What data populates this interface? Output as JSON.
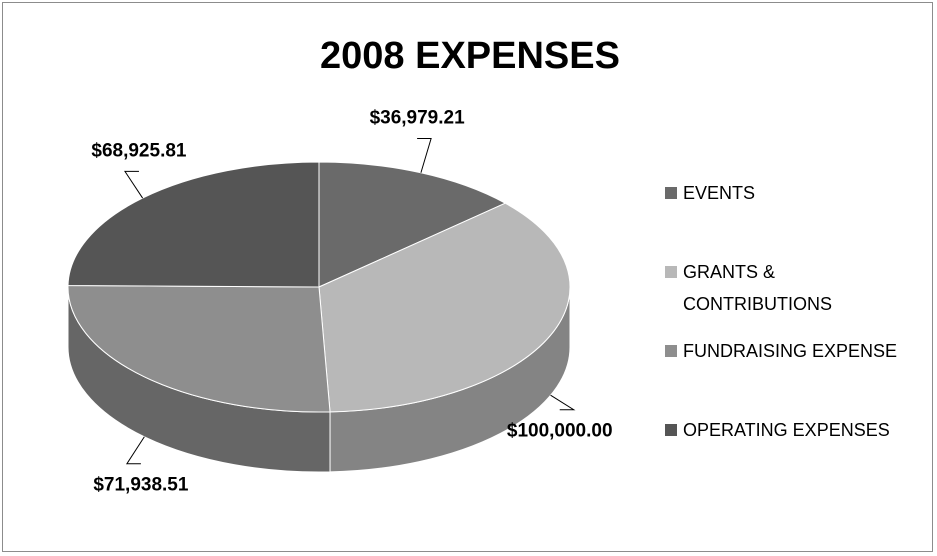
{
  "chart_data": {
    "type": "pie",
    "title": "2008 EXPENSES",
    "categories": [
      "EVENTS",
      "GRANTS & CONTRIBUTIONS",
      "FUNDRAISING EXPENSE",
      "OPERATING EXPENSES"
    ],
    "values": [
      36979.21,
      100000.0,
      71938.51,
      68925.81
    ],
    "value_labels": [
      "$36,979.21",
      "$100,000.00",
      "$71,938.51",
      "$68,925.81"
    ],
    "colors": [
      "#6a6a6a",
      "#b8b8b8",
      "#8e8e8e",
      "#555555"
    ],
    "legend": "right"
  }
}
